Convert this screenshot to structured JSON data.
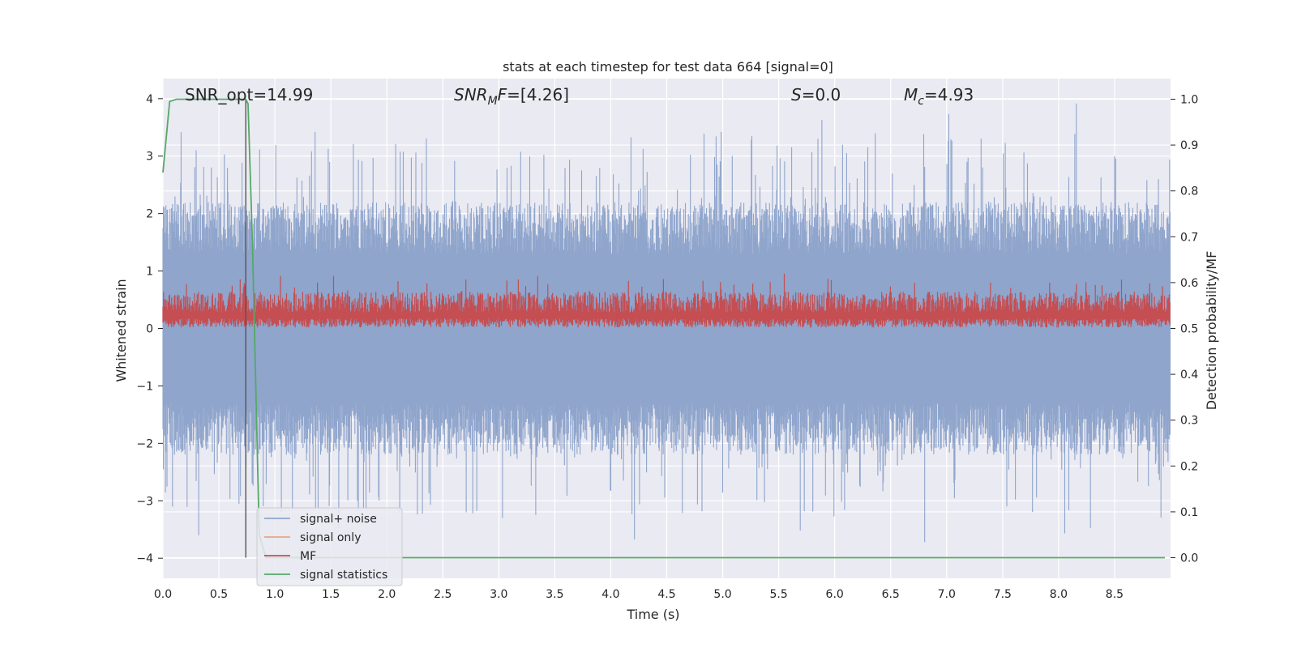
{
  "chart_data": {
    "type": "line",
    "title": "stats at each timestep for test data 664 [signal=0]",
    "xlabel": "Time (s)",
    "ylabel": "Whitened strain",
    "y2label": "Detection probability/MF",
    "xlim": [
      0.0,
      9.0
    ],
    "ylim": [
      -4.35,
      4.35
    ],
    "y2lim": [
      -0.045,
      1.045
    ],
    "x_ticks": [
      0.0,
      0.5,
      1.0,
      1.5,
      2.0,
      2.5,
      3.0,
      3.5,
      4.0,
      4.5,
      5.0,
      5.5,
      6.0,
      6.5,
      7.0,
      7.5,
      8.0,
      8.5
    ],
    "x_tick_labels": [
      "0.0",
      "0.5",
      "1.0",
      "1.5",
      "2.0",
      "2.5",
      "3.0",
      "3.5",
      "4.0",
      "4.5",
      "5.0",
      "5.5",
      "6.0",
      "6.5",
      "7.0",
      "7.5",
      "8.0",
      "8.5"
    ],
    "y_ticks": [
      -4,
      -3,
      -2,
      -1,
      0,
      1,
      2,
      3,
      4
    ],
    "y_tick_labels": [
      "−4",
      "−3",
      "−2",
      "−1",
      "0",
      "1",
      "2",
      "3",
      "4"
    ],
    "y2_ticks": [
      0.0,
      0.1,
      0.2,
      0.3,
      0.4,
      0.5,
      0.6,
      0.7,
      0.8,
      0.9,
      1.0
    ],
    "y2_tick_labels": [
      "0.0",
      "0.1",
      "0.2",
      "0.3",
      "0.4",
      "0.5",
      "0.6",
      "0.7",
      "0.8",
      "0.9",
      "1.0"
    ],
    "grid": true,
    "legend_position": "lower-left",
    "annotations": [
      {
        "id": "snr-opt",
        "text": "SNR_opt=14.99"
      },
      {
        "id": "snr-mf",
        "text": "SNR_MF=[4.26]"
      },
      {
        "id": "s-val",
        "text": "S=0.0"
      },
      {
        "id": "mc-val",
        "text": "M_c=4.93"
      }
    ],
    "series": [
      {
        "name": "signal+ noise",
        "color": "#8fa5cc",
        "axis": "left",
        "band_envelope": {
          "x": [
            0.0,
            9.0
          ],
          "upper_typical": 1.6,
          "lower_typical": -1.6,
          "max": 4.0,
          "min": -3.95
        }
      },
      {
        "name": "signal only",
        "color": "#e8a585",
        "axis": "left"
      },
      {
        "name": "MF",
        "color": "#c44e52",
        "axis": "right",
        "band_envelope": {
          "x": [
            0.0,
            9.0
          ],
          "lower_typical": 0.505,
          "upper_typical": 0.6,
          "max": 0.625
        }
      },
      {
        "name": "signal statistics",
        "color": "#55a868",
        "axis": "right",
        "x": [
          0.0,
          0.06,
          0.12,
          0.2,
          0.3,
          0.4,
          0.5,
          0.6,
          0.68,
          0.74,
          0.76,
          0.8,
          0.86,
          0.92,
          1.0,
          2.0,
          3.0,
          4.0,
          5.0,
          6.0,
          7.0,
          8.0,
          8.95
        ],
        "y": [
          0.84,
          0.995,
          1.0,
          1.0,
          1.0,
          1.0,
          1.0,
          1.0,
          1.0,
          1.0,
          0.99,
          0.68,
          0.05,
          0.0,
          0.0,
          0.0,
          0.0,
          0.0,
          0.0,
          0.0,
          0.0,
          0.0,
          0.0
        ]
      }
    ],
    "marker_line": {
      "x": 0.74,
      "color": "#555555"
    }
  }
}
